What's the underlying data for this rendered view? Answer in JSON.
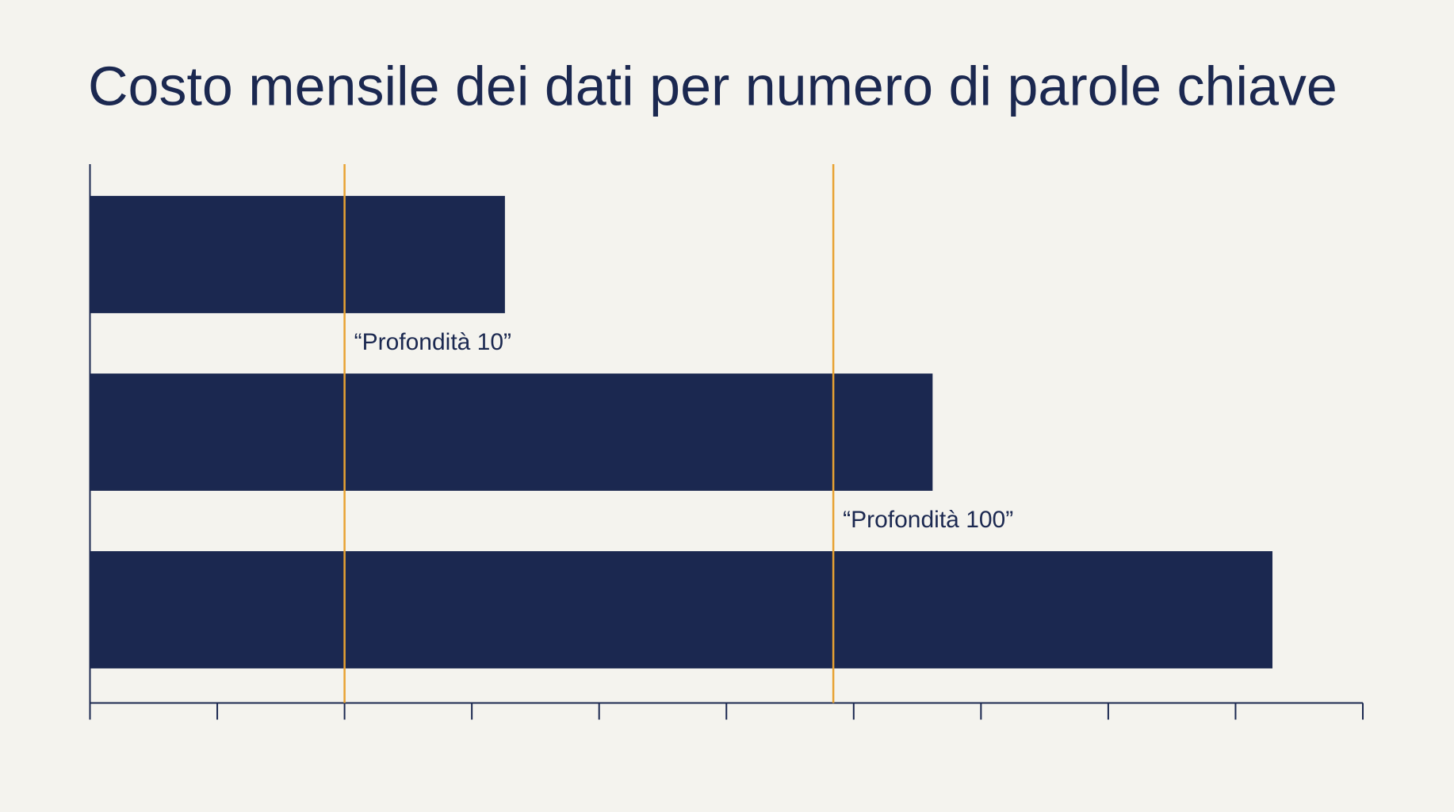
{
  "chart_data": {
    "type": "bar",
    "orientation": "horizontal",
    "title": "Costo mensile dei dati per numero di parole chiave",
    "categories": [
      null,
      null,
      null
    ],
    "values": [
      3.26,
      6.62,
      9.29
    ],
    "color": "#1b2850",
    "xlim": [
      0,
      10
    ],
    "xticks": [
      0,
      1,
      2,
      3,
      4,
      5,
      6,
      7,
      8,
      9,
      10
    ],
    "annotations": [
      {
        "x": 2,
        "label": "“Profondità 10”",
        "color": "#e8a232"
      },
      {
        "x": 5.84,
        "label": "“Profondità 100”",
        "color": "#e8a232"
      }
    ]
  }
}
